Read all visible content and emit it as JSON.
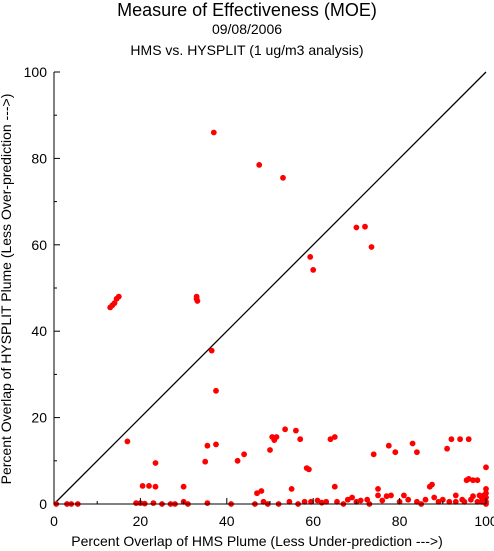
{
  "chart_data": {
    "type": "scatter",
    "title": "Measure of Effectiveness (MOE)",
    "date": "09/08/2006",
    "subtitle": "HMS vs. HYSPLIT  (1 ug/m3 analysis)",
    "xlabel": "Percent Overlap of HMS Plume (Less Under-prediction --->)",
    "ylabel": "Percent Overlap of HYSPLIT Plume (Less Over-prediction --->)",
    "xlim": [
      0,
      100
    ],
    "ylim": [
      0,
      100
    ],
    "x_ticks": [
      "0",
      "20",
      "40",
      "60",
      "80",
      "100"
    ],
    "y_ticks": [
      "0",
      "20",
      "40",
      "60",
      "80",
      "100"
    ],
    "reference_line": "y = x",
    "point_color": "#ff0000",
    "line_color": "#000000",
    "points": [
      [
        0.5,
        0
      ],
      [
        3,
        0
      ],
      [
        4,
        0
      ],
      [
        5.5,
        0
      ],
      [
        13,
        45.5
      ],
      [
        13.5,
        46
      ],
      [
        14,
        46.5
      ],
      [
        14.5,
        47.5
      ],
      [
        15,
        48
      ],
      [
        17,
        14.5
      ],
      [
        19,
        0.2
      ],
      [
        20,
        0.2
      ],
      [
        20.5,
        4.2
      ],
      [
        21,
        0.1
      ],
      [
        22,
        4.2
      ],
      [
        23,
        0.2
      ],
      [
        23.5,
        9.5
      ],
      [
        23.5,
        4
      ],
      [
        25,
        0
      ],
      [
        27,
        0
      ],
      [
        28,
        0
      ],
      [
        30,
        4
      ],
      [
        30,
        0.5
      ],
      [
        31,
        0
      ],
      [
        33,
        47.5
      ],
      [
        33,
        48
      ],
      [
        33.2,
        47
      ],
      [
        35,
        9.8
      ],
      [
        35.5,
        13.5
      ],
      [
        35.5,
        0.2
      ],
      [
        36.5,
        35.5
      ],
      [
        37,
        86
      ],
      [
        37.5,
        13.8
      ],
      [
        37.5,
        26.2
      ],
      [
        41,
        0
      ],
      [
        42.5,
        10
      ],
      [
        44,
        11.5
      ],
      [
        46.5,
        0
      ],
      [
        47,
        2.5
      ],
      [
        47.5,
        78.5
      ],
      [
        48,
        3
      ],
      [
        48.5,
        0.5
      ],
      [
        49.5,
        0
      ],
      [
        50,
        12.5
      ],
      [
        50.5,
        15.5
      ],
      [
        51,
        14.8
      ],
      [
        51.5,
        15.5
      ],
      [
        52,
        0
      ],
      [
        53,
        75.5
      ],
      [
        53.5,
        17.3
      ],
      [
        54.5,
        0.5
      ],
      [
        55,
        3.5
      ],
      [
        56,
        17
      ],
      [
        56.5,
        0
      ],
      [
        57,
        15
      ],
      [
        58,
        0.5
      ],
      [
        58.5,
        8.3
      ],
      [
        59,
        8
      ],
      [
        59.3,
        57.2
      ],
      [
        59.5,
        0.5
      ],
      [
        60,
        54.2
      ],
      [
        61,
        0.8
      ],
      [
        62,
        0.3
      ],
      [
        63,
        0.5
      ],
      [
        64,
        15
      ],
      [
        65,
        15.5
      ],
      [
        65.5,
        0.5
      ],
      [
        65,
        4
      ],
      [
        67,
        0
      ],
      [
        68,
        1
      ],
      [
        69,
        1.5
      ],
      [
        70,
        64
      ],
      [
        70,
        0.5
      ],
      [
        71,
        0.8
      ],
      [
        72,
        64.2
      ],
      [
        72.5,
        1
      ],
      [
        73,
        0
      ],
      [
        73.5,
        59.5
      ],
      [
        74,
        11.5
      ],
      [
        75,
        2
      ],
      [
        75,
        3.5
      ],
      [
        76,
        0.8
      ],
      [
        77,
        1.8
      ],
      [
        77.5,
        13.5
      ],
      [
        78,
        2
      ],
      [
        79,
        12
      ],
      [
        80,
        0.5
      ],
      [
        81,
        2
      ],
      [
        82,
        1
      ],
      [
        83,
        14
      ],
      [
        84,
        12
      ],
      [
        84,
        0.5
      ],
      [
        85,
        0
      ],
      [
        86,
        1
      ],
      [
        87,
        4
      ],
      [
        87.5,
        4.5
      ],
      [
        88,
        1.5
      ],
      [
        89,
        0.5
      ],
      [
        90,
        1
      ],
      [
        91,
        12.8
      ],
      [
        91.5,
        0.5
      ],
      [
        92,
        15
      ],
      [
        93,
        0.5
      ],
      [
        93,
        2
      ],
      [
        94,
        15
      ],
      [
        94.5,
        1
      ],
      [
        95,
        0.5
      ],
      [
        95.5,
        5.5
      ],
      [
        96,
        15
      ],
      [
        96,
        5.8
      ],
      [
        96.5,
        1
      ],
      [
        97,
        5.5
      ],
      [
        97,
        1.8
      ],
      [
        98,
        5.5
      ],
      [
        98,
        0.5
      ],
      [
        98.5,
        2
      ],
      [
        99,
        1.5
      ],
      [
        99,
        0.5
      ],
      [
        99.5,
        2
      ],
      [
        99.5,
        1
      ],
      [
        100,
        8.5
      ],
      [
        100,
        3.5
      ],
      [
        100,
        2.5
      ],
      [
        100,
        1.5
      ],
      [
        100,
        0.5
      ],
      [
        100,
        0
      ]
    ]
  }
}
